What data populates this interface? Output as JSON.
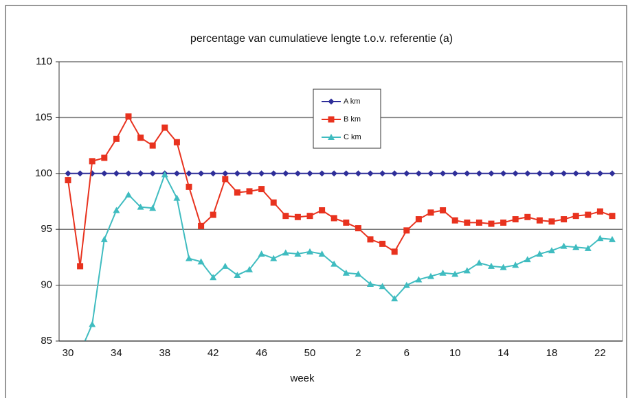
{
  "chart_data": {
    "type": "line",
    "title": "percentage van cumulatieve lengte  t.o.v. referentie (a)",
    "x_label": "week",
    "categories": [
      "30",
      null,
      null,
      null,
      "34",
      null,
      null,
      null,
      "38",
      null,
      null,
      null,
      "42",
      null,
      null,
      null,
      "46",
      null,
      null,
      null,
      "50",
      null,
      null,
      null,
      "2",
      null,
      null,
      null,
      "6",
      null,
      null,
      null,
      "10",
      null,
      null,
      null,
      "14",
      null,
      null,
      null,
      "18",
      null,
      null,
      null,
      "22",
      null
    ],
    "series": [
      {
        "name": "A km",
        "color": "#2e2e99",
        "marker": "diamond",
        "values": [
          100,
          100,
          100,
          100,
          100,
          100,
          100,
          100,
          100,
          100,
          100,
          100,
          100,
          100,
          100,
          100,
          100,
          100,
          100,
          100,
          100,
          100,
          100,
          100,
          100,
          100,
          100,
          100,
          100,
          100,
          100,
          100,
          100,
          100,
          100,
          100,
          100,
          100,
          100,
          100,
          100,
          100,
          100,
          100,
          100,
          100
        ]
      },
      {
        "name": "B km",
        "color": "#e8321e",
        "marker": "square",
        "values": [
          99.4,
          91.7,
          101.1,
          101.4,
          103.1,
          105.1,
          103.2,
          102.5,
          104.1,
          102.8,
          98.8,
          95.3,
          96.3,
          99.5,
          98.3,
          98.4,
          98.6,
          97.4,
          96.2,
          96.1,
          96.2,
          96.7,
          96.0,
          95.6,
          95.1,
          94.1,
          93.7,
          93.0,
          94.9,
          95.9,
          96.5,
          96.7,
          95.8,
          95.6,
          95.6,
          95.5,
          95.6,
          95.9,
          96.1,
          95.8,
          95.7,
          95.9,
          96.2,
          96.3,
          96.6,
          96.2
        ]
      },
      {
        "name": "C km",
        "color": "#3fbcc0",
        "marker": "triangle",
        "values": [
          null,
          84.0,
          86.5,
          94.1,
          96.7,
          98.1,
          97.0,
          96.9,
          99.9,
          97.8,
          92.4,
          92.1,
          90.7,
          91.7,
          90.9,
          91.4,
          92.8,
          92.4,
          92.9,
          92.8,
          93.0,
          92.8,
          91.9,
          91.1,
          91.0,
          90.1,
          89.9,
          88.8,
          90.0,
          90.5,
          90.8,
          91.1,
          91.0,
          91.3,
          92.0,
          91.7,
          91.6,
          91.8,
          92.3,
          92.8,
          93.1,
          93.5,
          93.4,
          93.3,
          94.2,
          94.1
        ]
      }
    ],
    "ylim": [
      85,
      110
    ],
    "yticks": [
      85,
      90,
      95,
      100,
      105,
      110
    ],
    "grid": true
  }
}
